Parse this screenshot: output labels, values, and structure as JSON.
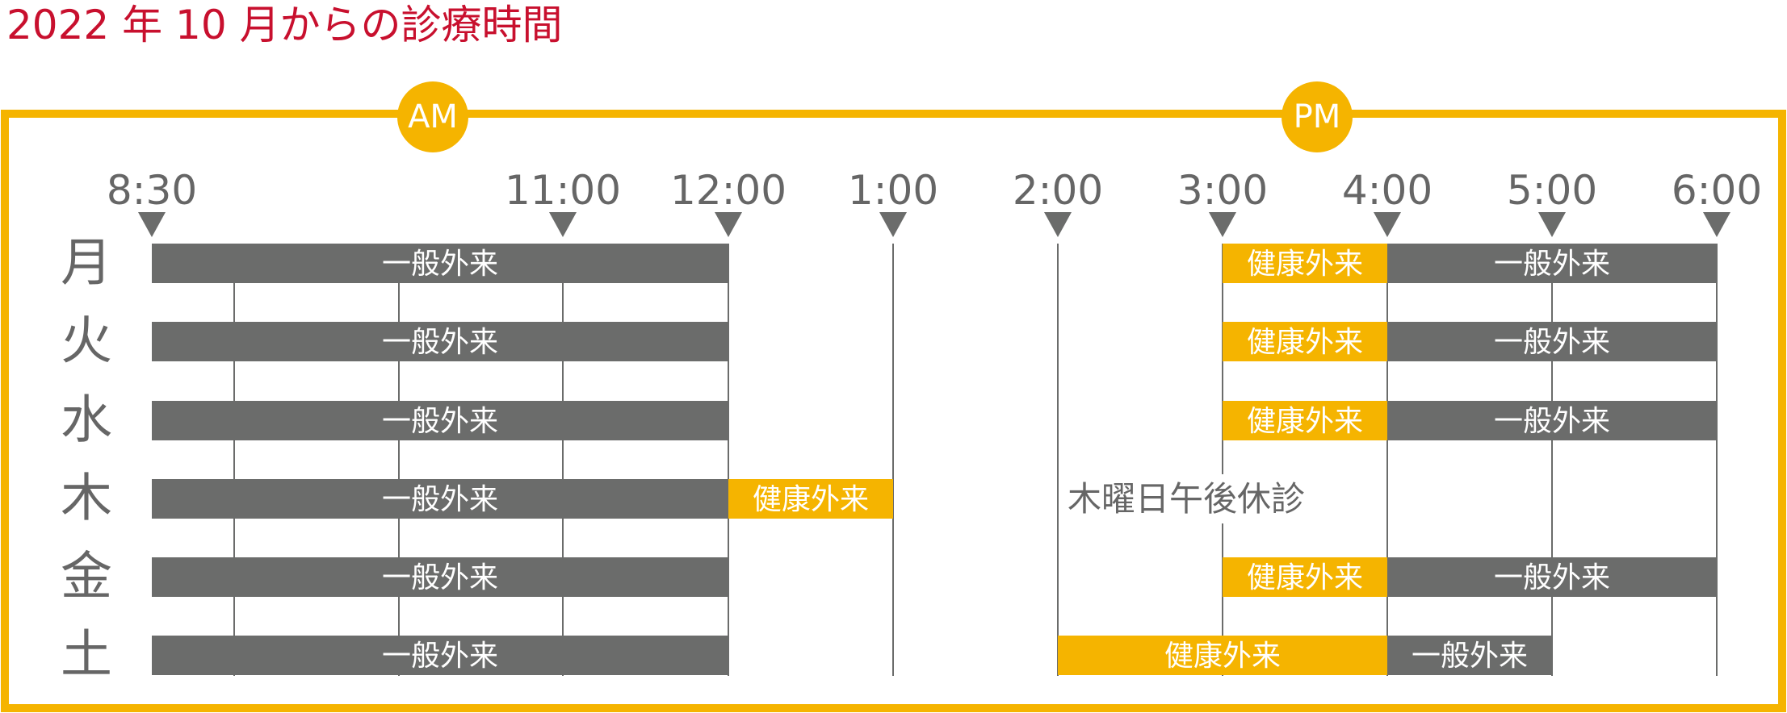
{
  "title": "2022 年 10 月からの診療時間",
  "periods": [
    {
      "label": "AM"
    },
    {
      "label": "PM"
    }
  ],
  "time_markers": [
    "8:30",
    "11:00",
    "12:00",
    "1:00",
    "2:00",
    "3:00",
    "4:00",
    "5:00",
    "6:00"
  ],
  "days": [
    {
      "label": "月",
      "blocks": [
        {
          "start": "8:30",
          "end": "12:00",
          "label": "一般外来",
          "kind": "general"
        },
        {
          "start": "3:00",
          "end": "4:00",
          "label": "健康外来",
          "kind": "health"
        },
        {
          "start": "4:00",
          "end": "6:00",
          "label": "一般外来",
          "kind": "general"
        }
      ]
    },
    {
      "label": "火",
      "blocks": [
        {
          "start": "8:30",
          "end": "12:00",
          "label": "一般外来",
          "kind": "general"
        },
        {
          "start": "3:00",
          "end": "4:00",
          "label": "健康外来",
          "kind": "health"
        },
        {
          "start": "4:00",
          "end": "6:00",
          "label": "一般外来",
          "kind": "general"
        }
      ]
    },
    {
      "label": "水",
      "blocks": [
        {
          "start": "8:30",
          "end": "12:00",
          "label": "一般外来",
          "kind": "general"
        },
        {
          "start": "3:00",
          "end": "4:00",
          "label": "健康外来",
          "kind": "health"
        },
        {
          "start": "4:00",
          "end": "6:00",
          "label": "一般外来",
          "kind": "general"
        }
      ]
    },
    {
      "label": "木",
      "blocks": [
        {
          "start": "8:30",
          "end": "12:00",
          "label": "一般外来",
          "kind": "general"
        },
        {
          "start": "12:00",
          "end": "1:00",
          "label": "健康外来",
          "kind": "health"
        }
      ],
      "note": "木曜日午後休診"
    },
    {
      "label": "金",
      "blocks": [
        {
          "start": "8:30",
          "end": "12:00",
          "label": "一般外来",
          "kind": "general"
        },
        {
          "start": "3:00",
          "end": "4:00",
          "label": "健康外来",
          "kind": "health"
        },
        {
          "start": "4:00",
          "end": "6:00",
          "label": "一般外来",
          "kind": "general"
        }
      ]
    },
    {
      "label": "土",
      "blocks": [
        {
          "start": "8:30",
          "end": "12:00",
          "label": "一般外来",
          "kind": "general"
        },
        {
          "start": "2:00",
          "end": "4:00",
          "label": "健康外来",
          "kind": "health"
        },
        {
          "start": "4:00",
          "end": "5:00",
          "label": "一般外来",
          "kind": "general"
        }
      ]
    }
  ],
  "colors": {
    "title": "#c8102e",
    "frame": "#f5b400",
    "general": "#6b6c6b",
    "health": "#f5b400",
    "text_dark": "#666666",
    "block_text": "#ffffff"
  }
}
